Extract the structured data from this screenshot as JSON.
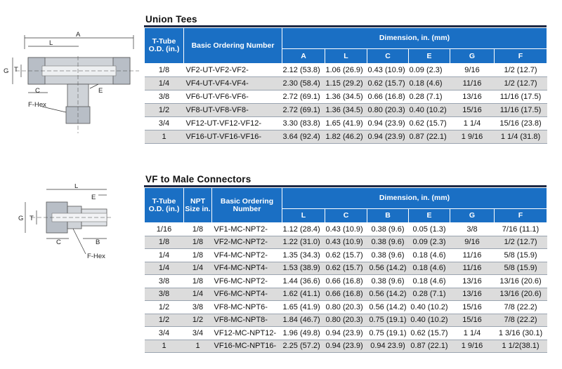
{
  "union_tees": {
    "title": "Union  Tees",
    "headers": {
      "tube_od": "T-Tube O.D. (in.)",
      "ordering": "Basic Ordering Number",
      "dimension": "Dimension, in. (mm)",
      "cols": [
        "A",
        "L",
        "C",
        "E",
        "G",
        "F"
      ]
    },
    "rows": [
      {
        "od": "1/8",
        "order": "VF2-UT-VF2-VF2-",
        "a": "2.12 (53.8)",
        "l": "1.06 (26.9)",
        "c": "0.43 (10.9)",
        "e": "0.09 (2.3)",
        "g": "9/16",
        "f": "1/2 (12.7)"
      },
      {
        "od": "1/4",
        "order": "VF4-UT-VF4-VF4-",
        "a": "2.30 (58.4)",
        "l": "1.15 (29.2)",
        "c": "0.62 (15.7)",
        "e": "0.18 (4.6)",
        "g": "11/16",
        "f": "1/2 (12.7)"
      },
      {
        "od": "3/8",
        "order": "VF6-UT-VF6-VF6-",
        "a": "2.72 (69.1)",
        "l": "1.36 (34.5)",
        "c": "0.66 (16.8)",
        "e": "0.28 (7.1)",
        "g": "13/16",
        "f": "11/16 (17.5)"
      },
      {
        "od": "1/2",
        "order": "VF8-UT-VF8-VF8-",
        "a": "2.72 (69.1)",
        "l": "1.36 (34.5)",
        "c": "0.80 (20.3)",
        "e": "0.40 (10.2)",
        "g": "15/16",
        "f": "11/16 (17.5)"
      },
      {
        "od": "3/4",
        "order": "VF12-UT-VF12-VF12-",
        "a": "3.30 (83.8)",
        "l": "1.65 (41.9)",
        "c": "0.94 (23.9)",
        "e": "0.62 (15.7)",
        "g": "1  1/4",
        "f": "15/16 (23.8)"
      },
      {
        "od": "1",
        "order": "VF16-UT-VF16-VF16-",
        "a": "3.64 (92.4)",
        "l": "1.82 (46.2)",
        "c": "0.94 (23.9)",
        "e": "0.87 (22.1)",
        "g": "1  9/16",
        "f": "1 1/4 (31.8)"
      }
    ],
    "drawing_labels": {
      "a": "A",
      "l": "L",
      "g": "G",
      "t": "T",
      "c": "C",
      "e": "E",
      "fhex": "F-Hex"
    }
  },
  "male_connectors": {
    "title": "VF to Male  Connectors",
    "headers": {
      "tube_od": "T-Tube O.D. (in.)",
      "npt": "NPT Size in.",
      "ordering": "Basic Ordering Number",
      "dimension": "Dimension, in. (mm)",
      "cols": [
        "L",
        "C",
        "B",
        "E",
        "G",
        "F"
      ]
    },
    "rows": [
      {
        "od": "1/16",
        "npt": "1/8",
        "order": "VF1-MC-NPT2-",
        "l": "1.12 (28.4)",
        "c": "0.43 (10.9)",
        "b": "0.38 (9.6)",
        "e": "0.05 (1.3)",
        "g": "3/8",
        "f": "7/16 (11.1)"
      },
      {
        "od": "1/8",
        "npt": "1/8",
        "order": "VF2-MC-NPT2-",
        "l": "1.22 (31.0)",
        "c": "0.43 (10.9)",
        "b": "0.38 (9.6)",
        "e": "0.09 (2.3)",
        "g": "9/16",
        "f": "1/2 (12.7)"
      },
      {
        "od": "1/4",
        "npt": "1/8",
        "order": "VF4-MC-NPT2-",
        "l": "1.35 (34.3)",
        "c": "0.62 (15.7)",
        "b": "0.38 (9.6)",
        "e": "0.18 (4.6)",
        "g": "11/16",
        "f": "5/8 (15.9)"
      },
      {
        "od": "1/4",
        "npt": "1/4",
        "order": "VF4-MC-NPT4-",
        "l": "1.53 (38.9)",
        "c": "0.62 (15.7)",
        "b": "0.56 (14.2)",
        "e": "0.18 (4.6)",
        "g": "11/16",
        "f": "5/8 (15.9)"
      },
      {
        "od": "3/8",
        "npt": "1/8",
        "order": "VF6-MC-NPT2-",
        "l": "1.44 (36.6)",
        "c": "0.66 (16.8)",
        "b": "0.38 (9.6)",
        "e": "0.18 (4.6)",
        "g": "13/16",
        "f": "13/16 (20.6)"
      },
      {
        "od": "3/8",
        "npt": "1/4",
        "order": "VF6-MC-NPT4-",
        "l": "1.62 (41.1)",
        "c": "0.66 (16.8)",
        "b": "0.56 (14.2)",
        "e": "0.28 (7.1)",
        "g": "13/16",
        "f": "13/16 (20.6)"
      },
      {
        "od": "1/2",
        "npt": "3/8",
        "order": "VF8-MC-NPT6-",
        "l": "1.65 (41.9)",
        "c": "0.80 (20.3)",
        "b": "0.56 (14.2)",
        "e": "0.40 (10.2)",
        "g": "15/16",
        "f": "7/8 (22.2)"
      },
      {
        "od": "1/2",
        "npt": "1/2",
        "order": "VF8-MC-NPT8-",
        "l": "1.84 (46.7)",
        "c": "0.80 (20.3)",
        "b": "0.75 (19.1)",
        "e": "0.40 (10.2)",
        "g": "15/16",
        "f": "7/8 (22.2)"
      },
      {
        "od": "3/4",
        "npt": "3/4",
        "order": "VF12-MC-NPT12-",
        "l": "1.96 (49.8)",
        "c": "0.94 (23.9)",
        "b": "0.75 (19.1)",
        "e": "0.62 (15.7)",
        "g": "1  1/4",
        "f": "1 3/16 (30.1)"
      },
      {
        "od": "1",
        "npt": "1",
        "order": "VF16-MC-NPT16-",
        "l": "2.25 (57.2)",
        "c": "0.94 (23.9)",
        "b": "0.94  23.9)",
        "e": "0.87 (22.1)",
        "g": "1  9/16",
        "f": "1 1/2(38.1)"
      }
    ],
    "drawing_labels": {
      "l": "L",
      "g": "G",
      "t": "T",
      "c": "C",
      "b": "B",
      "e": "E",
      "fhex": "F-Hex"
    }
  },
  "colors": {
    "header_blue": "#1a6fc4",
    "alt_row": "#dcdcdc",
    "rule": "#1f2a44"
  }
}
